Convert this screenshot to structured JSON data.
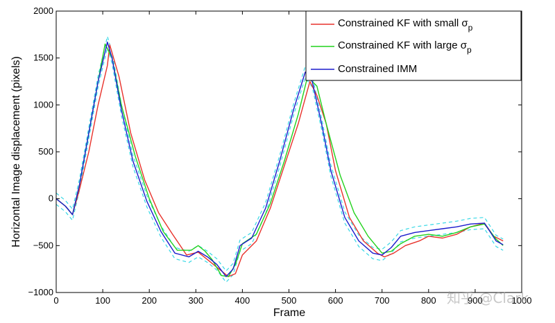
{
  "chart_data": {
    "type": "line",
    "title": "",
    "xlabel": "Frame",
    "ylabel": "Horizontal Image displacement (pixels)",
    "xlim": [
      0,
      1000
    ],
    "ylim": [
      -1000,
      2000
    ],
    "xticks": [
      0,
      100,
      200,
      300,
      400,
      500,
      600,
      700,
      800,
      900,
      1000
    ],
    "yticks": [
      -1000,
      -500,
      0,
      500,
      1000,
      1500,
      2000
    ],
    "xtick_labels": [
      "0",
      "100",
      "200",
      "300",
      "400",
      "500",
      "600",
      "700",
      "800",
      "900",
      "1000"
    ],
    "ytick_labels": [
      "−1000",
      "−500",
      "0",
      "500",
      "1000",
      "1500",
      "2000"
    ],
    "grid": false,
    "legend_position": "top-right",
    "legend_label_prefix": "Constrained KF with small σ",
    "legend_label_prefix2": "Constrained KF with large σ",
    "legend_sub": "p",
    "series": [
      {
        "name": "Constrained KF with small σp",
        "color": "#e8312a",
        "x": [
          0,
          20,
          35,
          50,
          70,
          90,
          110,
          115,
          135,
          160,
          190,
          220,
          250,
          280,
          305,
          325,
          345,
          370,
          385,
          400,
          430,
          460,
          490,
          520,
          545,
          560,
          580,
          600,
          630,
          660,
          690,
          705,
          725,
          750,
          780,
          800,
          830,
          860,
          890,
          920,
          940,
          960
        ],
        "y": [
          0,
          -80,
          -170,
          100,
          500,
          1000,
          1420,
          1640,
          1300,
          700,
          200,
          -150,
          -380,
          -600,
          -570,
          -650,
          -730,
          -830,
          -800,
          -600,
          -450,
          -100,
          350,
          800,
          1250,
          1100,
          800,
          300,
          -200,
          -450,
          -580,
          -620,
          -580,
          -500,
          -450,
          -400,
          -420,
          -380,
          -300,
          -260,
          -400,
          -450
        ]
      },
      {
        "name": "Constrained KF with large σp",
        "color": "#21d21c",
        "x": [
          0,
          20,
          35,
          50,
          70,
          90,
          105,
          120,
          140,
          170,
          200,
          230,
          260,
          290,
          305,
          320,
          335,
          355,
          370,
          385,
          400,
          430,
          460,
          490,
          520,
          540,
          560,
          580,
          610,
          640,
          670,
          700,
          720,
          740,
          770,
          800,
          830,
          860,
          890,
          920,
          945,
          960
        ],
        "y": [
          0,
          -80,
          -170,
          150,
          700,
          1250,
          1650,
          1500,
          1000,
          450,
          0,
          -350,
          -550,
          -550,
          -500,
          -560,
          -650,
          -820,
          -830,
          -700,
          -480,
          -380,
          -50,
          400,
          900,
          1300,
          1200,
          800,
          250,
          -150,
          -400,
          -580,
          -560,
          -480,
          -400,
          -380,
          -400,
          -360,
          -300,
          -270,
          -430,
          -500
        ]
      },
      {
        "name": "Constrained IMM",
        "color": "#1a1acc",
        "x": [
          0,
          20,
          35,
          50,
          70,
          90,
          110,
          120,
          140,
          165,
          195,
          225,
          255,
          285,
          305,
          325,
          345,
          365,
          380,
          395,
          420,
          450,
          480,
          510,
          535,
          550,
          570,
          590,
          620,
          650,
          680,
          700,
          720,
          740,
          770,
          800,
          830,
          860,
          890,
          920,
          945,
          960
        ],
        "y": [
          0,
          -80,
          -170,
          150,
          700,
          1250,
          1670,
          1500,
          950,
          400,
          -30,
          -350,
          -580,
          -620,
          -560,
          -620,
          -700,
          -830,
          -750,
          -500,
          -420,
          -100,
          400,
          950,
          1350,
          1250,
          800,
          300,
          -200,
          -450,
          -580,
          -600,
          -520,
          -400,
          -360,
          -340,
          -320,
          -300,
          -270,
          -260,
          -450,
          -490
        ]
      }
    ],
    "bounds": {
      "color": "#35d8e6",
      "offset": 60
    }
  },
  "watermark": "知乎 @Clark"
}
